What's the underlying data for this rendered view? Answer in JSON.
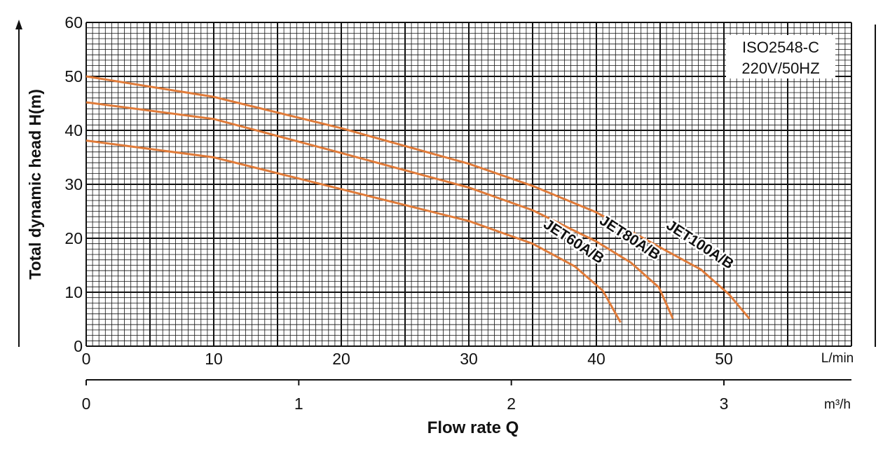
{
  "chart_data": {
    "type": "line",
    "y_label": "Total dynamic head H(m)",
    "x_label": "Flow rate Q",
    "x_unit": "L/min",
    "x2_unit": "m³/h",
    "annotations": [
      "ISO2548-C",
      "220V/50HZ"
    ],
    "xlim": [
      0,
      60
    ],
    "xticks": [
      0,
      10,
      20,
      30,
      40,
      50
    ],
    "x2lim": [
      0,
      3.6
    ],
    "x2ticks": [
      0,
      1,
      2,
      3
    ],
    "ylim": [
      0,
      60
    ],
    "yticks": [
      0,
      10,
      20,
      30,
      40,
      50,
      60
    ],
    "grid": {
      "major_x": 5,
      "major_y": 10,
      "minor_x": 0.5,
      "minor_y": 1
    },
    "series": [
      {
        "name": "JET100A/B",
        "color": "#e07b39",
        "x": [
          0,
          10,
          20,
          30,
          35,
          40,
          45,
          48.2,
          50.4,
          52
        ],
        "values": [
          50,
          46.2,
          40.4,
          33.8,
          29.7,
          24.8,
          18.3,
          14.2,
          9.6,
          5.1
        ]
      },
      {
        "name": "JET80A/B",
        "color": "#e07b39",
        "x": [
          0,
          10,
          20,
          30,
          35,
          40,
          42.7,
          44.9,
          46
        ],
        "values": [
          45.2,
          42.1,
          35.8,
          29.4,
          25.2,
          19.4,
          15.5,
          10.9,
          5.1
        ]
      },
      {
        "name": "JET60A/B",
        "color": "#e07b39",
        "x": [
          0,
          10,
          20,
          30,
          35,
          38.3,
          40.5,
          41.9
        ],
        "values": [
          38.1,
          35,
          29.1,
          23.2,
          19,
          14.8,
          10.3,
          4.4
        ]
      }
    ]
  }
}
